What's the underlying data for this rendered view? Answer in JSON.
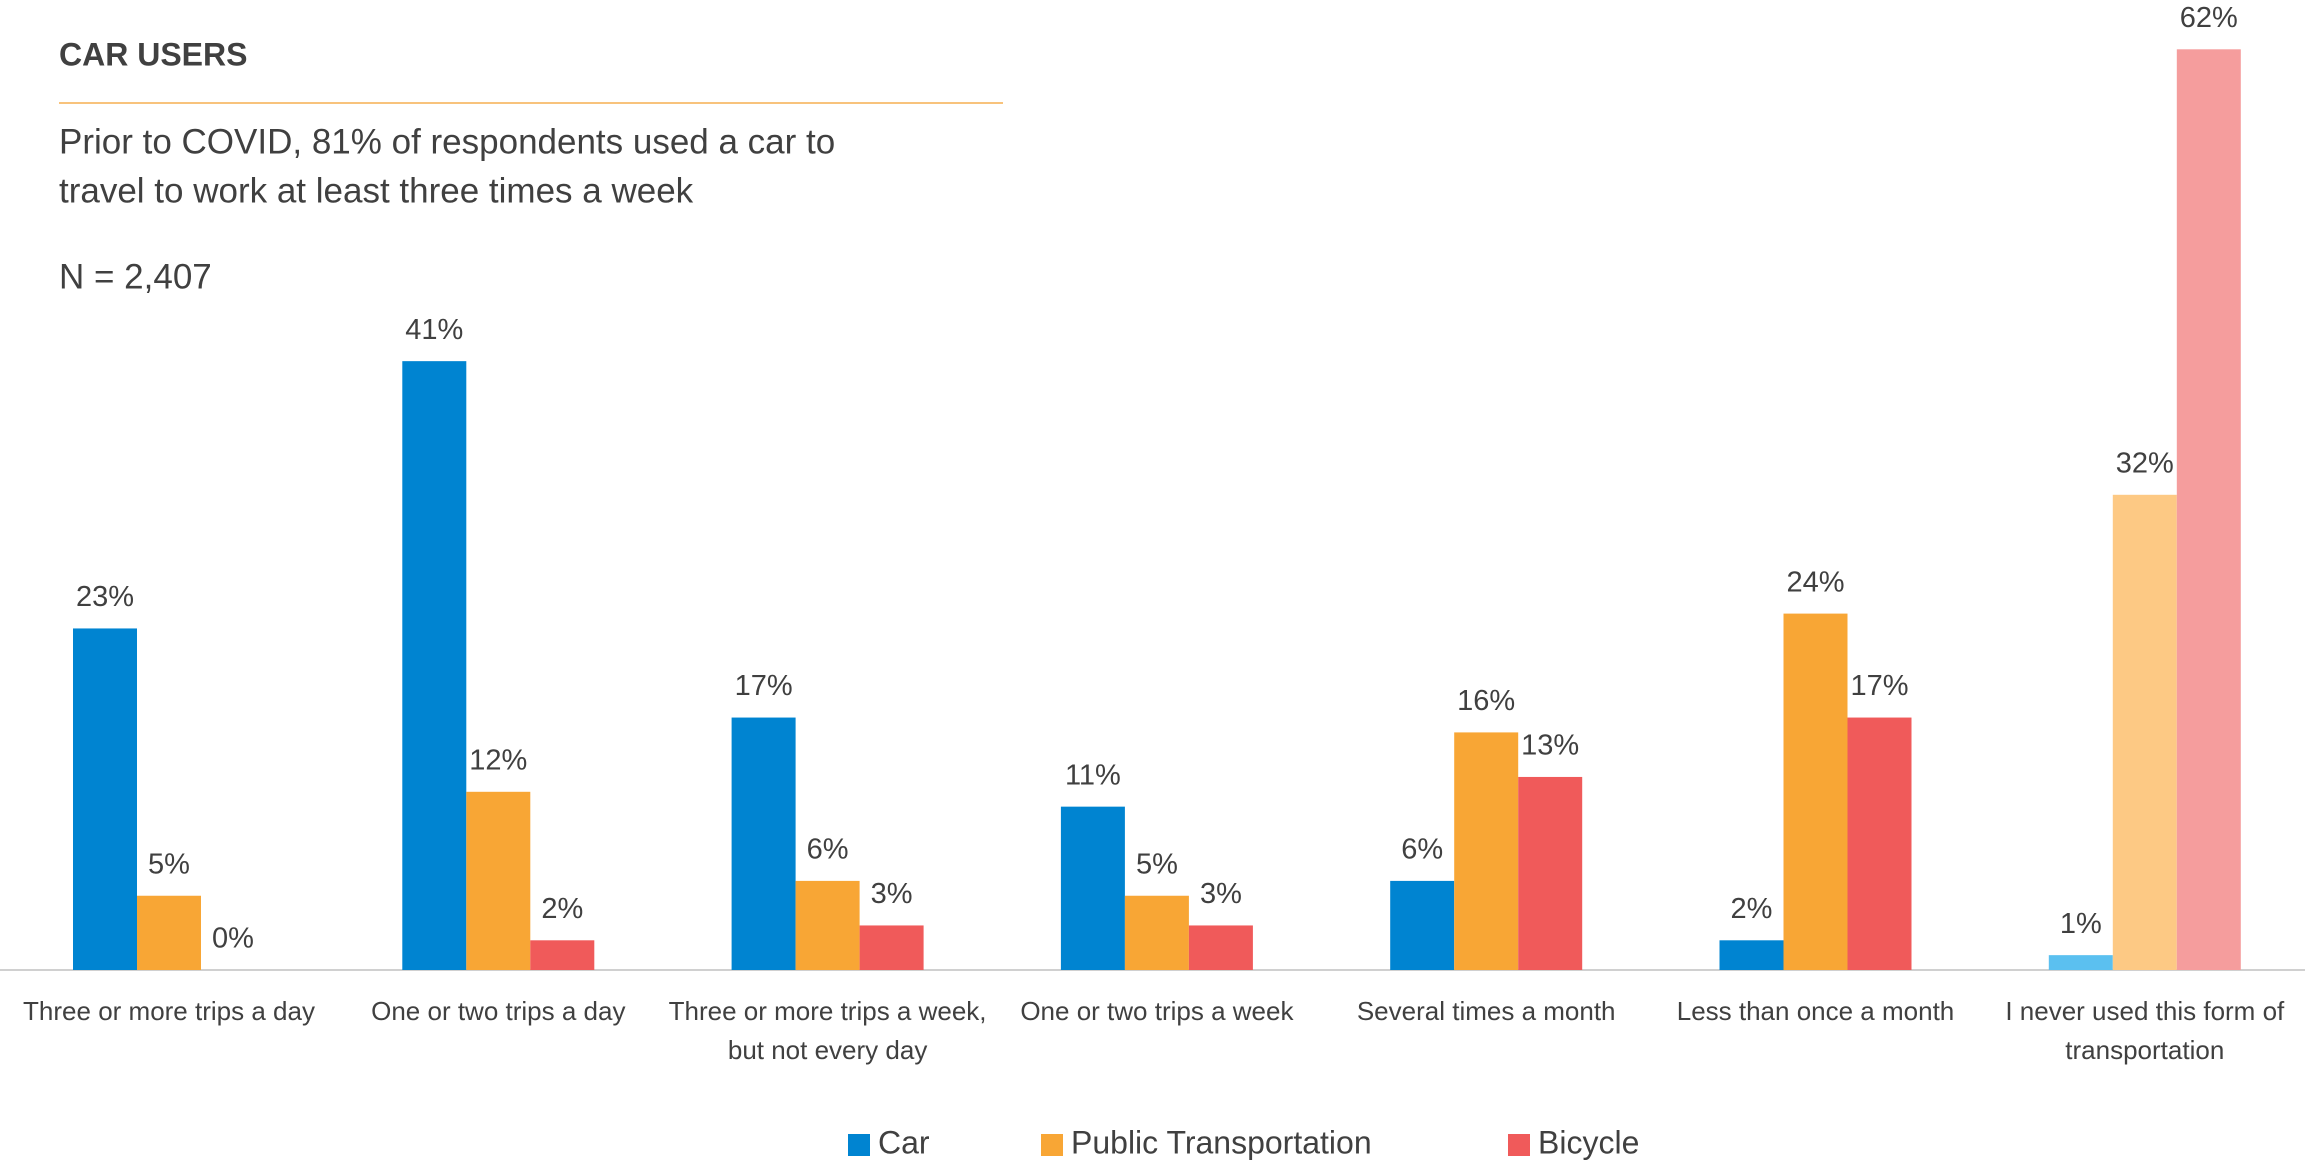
{
  "chart_data": {
    "type": "bar",
    "title": "CAR USERS",
    "subtitle": [
      "Prior to COVID, 81% of respondents used a car to",
      "travel to work at least three times a week"
    ],
    "note": "N = 2,407",
    "categories": [
      "Three or more trips a day",
      "One or two trips a day",
      "Three or more trips a week, but not every day",
      "One or two trips a week",
      "Several times a month",
      "Less than once a month",
      "I never used this form of transportation"
    ],
    "series": [
      {
        "name": "Car",
        "color": "#0084d1",
        "colors": [
          "#0084d1",
          "#0084d1",
          "#0084d1",
          "#0084d1",
          "#0084d1",
          "#0084d1",
          "#5bc0f0"
        ],
        "values": [
          23,
          41,
          17,
          11,
          6,
          2,
          1
        ],
        "value_labels": [
          "23%",
          "41%",
          "17%",
          "11%",
          "6%",
          "2%",
          "1%"
        ]
      },
      {
        "name": "Public Transportation",
        "color": "#f8a635",
        "colors": [
          "#f8a635",
          "#f8a635",
          "#f8a635",
          "#f8a635",
          "#f8a635",
          "#f8a635",
          "#fdc984"
        ],
        "values": [
          5,
          12,
          6,
          5,
          16,
          24,
          32
        ],
        "value_labels": [
          "5%",
          "12%",
          "6%",
          "5%",
          "16%",
          "24%",
          "32%"
        ]
      },
      {
        "name": "Bicycle",
        "color": "#f05a5a",
        "colors": [
          "#f05a5a",
          "#f05a5a",
          "#f05a5a",
          "#f05a5a",
          "#f05a5a",
          "#f05a5a",
          "#f59d9d"
        ],
        "values": [
          0,
          2,
          3,
          3,
          13,
          17,
          62
        ],
        "value_labels": [
          "0%",
          "2%",
          "3%",
          "3%",
          "13%",
          "17%",
          "62%"
        ]
      }
    ],
    "legend": "bottom"
  }
}
